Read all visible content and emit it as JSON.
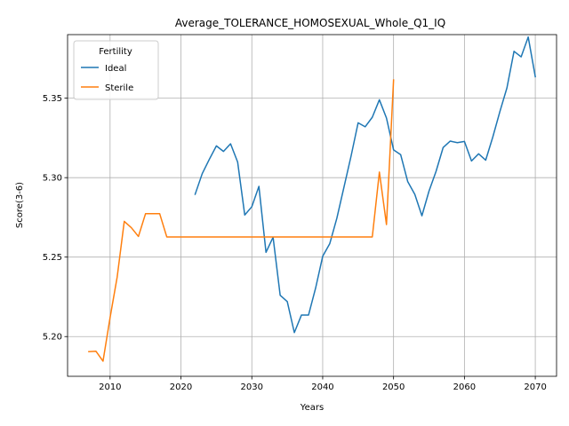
{
  "chart_data": {
    "type": "line",
    "title": "Average_TOLERANCE_HOMOSEXUAL_Whole_Q1_IQ",
    "xlabel": "Years",
    "ylabel": "Score(3-6)",
    "xlim": [
      2004,
      2073
    ],
    "ylim": [
      5.175,
      5.39
    ],
    "xticks": [
      2010,
      2020,
      2030,
      2040,
      2050,
      2060,
      2070
    ],
    "yticks": [
      5.2,
      5.25,
      5.3,
      5.35
    ],
    "ytick_labels": [
      "5.20",
      "5.25",
      "5.30",
      "5.35"
    ],
    "grid": true,
    "legend": {
      "title": "Fertility",
      "placement": "top-left"
    },
    "series": [
      {
        "name": "Ideal",
        "color": "#1f77b4",
        "points": [
          [
            2022,
            5.2895
          ],
          [
            2023,
            5.3025
          ],
          [
            2024,
            5.3115
          ],
          [
            2025,
            5.32
          ],
          [
            2026,
            5.3165
          ],
          [
            2027,
            5.3213
          ],
          [
            2028,
            5.3098
          ],
          [
            2029,
            5.2765
          ],
          [
            2030,
            5.2817
          ],
          [
            2031,
            5.2945
          ],
          [
            2032,
            5.253
          ],
          [
            2033,
            5.2625
          ],
          [
            2034,
            5.226
          ],
          [
            2035,
            5.222
          ],
          [
            2036,
            5.2025
          ],
          [
            2037,
            5.2135
          ],
          [
            2038,
            5.2135
          ],
          [
            2039,
            5.2305
          ],
          [
            2040,
            5.2505
          ],
          [
            2041,
            5.2585
          ],
          [
            2042,
            5.2745
          ],
          [
            2043,
            5.294
          ],
          [
            2044,
            5.3135
          ],
          [
            2045,
            5.3345
          ],
          [
            2046,
            5.332
          ],
          [
            2047,
            5.338
          ],
          [
            2048,
            5.349
          ],
          [
            2049,
            5.3375
          ],
          [
            2050,
            5.3175
          ],
          [
            2051,
            5.3145
          ],
          [
            2052,
            5.2975
          ],
          [
            2053,
            5.2895
          ],
          [
            2054,
            5.276
          ],
          [
            2055,
            5.2915
          ],
          [
            2056,
            5.304
          ],
          [
            2057,
            5.319
          ],
          [
            2058,
            5.323
          ],
          [
            2059,
            5.322
          ],
          [
            2060,
            5.3228
          ],
          [
            2061,
            5.3105
          ],
          [
            2062,
            5.315
          ],
          [
            2063,
            5.311
          ],
          [
            2064,
            5.3255
          ],
          [
            2065,
            5.3415
          ],
          [
            2066,
            5.3565
          ],
          [
            2067,
            5.3795
          ],
          [
            2068,
            5.376
          ],
          [
            2069,
            5.3885
          ],
          [
            2070,
            5.3635
          ]
        ]
      },
      {
        "name": "Sterile",
        "color": "#ff7f0e",
        "points": [
          [
            2007,
            5.1905
          ],
          [
            2008,
            5.1908
          ],
          [
            2009,
            5.1845
          ],
          [
            2010,
            5.212
          ],
          [
            2011,
            5.2375
          ],
          [
            2012,
            5.2725
          ],
          [
            2013,
            5.2685
          ],
          [
            2014,
            5.263
          ],
          [
            2015,
            5.2773
          ],
          [
            2016,
            5.2773
          ],
          [
            2017,
            5.2773
          ],
          [
            2018,
            5.2627
          ],
          [
            2019,
            5.2627
          ],
          [
            2020,
            5.2627
          ],
          [
            2021,
            5.2627
          ],
          [
            2022,
            5.2627
          ],
          [
            2023,
            5.2627
          ],
          [
            2024,
            5.2627
          ],
          [
            2025,
            5.2627
          ],
          [
            2026,
            5.2627
          ],
          [
            2027,
            5.2627
          ],
          [
            2028,
            5.2627
          ],
          [
            2029,
            5.2627
          ],
          [
            2030,
            5.2627
          ],
          [
            2031,
            5.2627
          ],
          [
            2032,
            5.2627
          ],
          [
            2033,
            5.2627
          ],
          [
            2034,
            5.2627
          ],
          [
            2035,
            5.2627
          ],
          [
            2036,
            5.2627
          ],
          [
            2037,
            5.2627
          ],
          [
            2038,
            5.2627
          ],
          [
            2039,
            5.2627
          ],
          [
            2040,
            5.2627
          ],
          [
            2041,
            5.2627
          ],
          [
            2042,
            5.2627
          ],
          [
            2043,
            5.2627
          ],
          [
            2044,
            5.2627
          ],
          [
            2045,
            5.2627
          ],
          [
            2046,
            5.2627
          ],
          [
            2047,
            5.2627
          ],
          [
            2048,
            5.3035
          ],
          [
            2049,
            5.2705
          ],
          [
            2050,
            5.3615
          ]
        ]
      }
    ]
  }
}
